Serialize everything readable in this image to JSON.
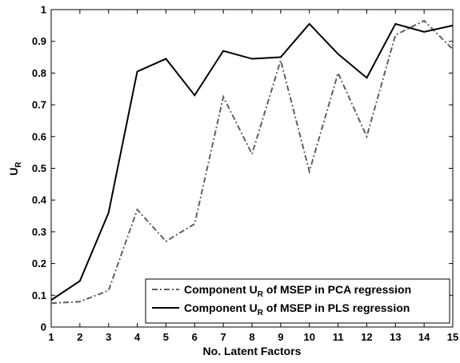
{
  "chart_data": {
    "type": "line",
    "title": "",
    "xlabel": "No. Latent Factors",
    "ylabel": "U",
    "ylabel_sub": "R",
    "x": [
      1,
      2,
      3,
      4,
      5,
      6,
      7,
      8,
      9,
      10,
      11,
      12,
      13,
      14,
      15
    ],
    "xlim": [
      1,
      15
    ],
    "ylim": [
      0,
      1
    ],
    "xticks": [
      1,
      2,
      3,
      4,
      5,
      6,
      7,
      8,
      9,
      10,
      11,
      12,
      13,
      14,
      15
    ],
    "yticks": [
      0,
      0.1,
      0.2,
      0.3,
      0.4,
      0.5,
      0.6,
      0.7,
      0.8,
      0.9,
      1
    ],
    "grid": false,
    "legend_position": "bottom-right",
    "series": [
      {
        "name": "Component U_R of MSEP in PCA regression",
        "legend_pre": "Component U",
        "legend_sub": "R",
        "legend_post": " of MSEP in PCA regression",
        "style": "dashdot",
        "color": "#606060",
        "values": [
          0.075,
          0.08,
          0.115,
          0.37,
          0.27,
          0.325,
          0.725,
          0.545,
          0.84,
          0.49,
          0.8,
          0.6,
          0.92,
          0.965,
          0.875
        ]
      },
      {
        "name": "Component U_R of MSEP in PLS regression",
        "legend_pre": "Component U",
        "legend_sub": "R",
        "legend_post": " of MSEP in PLS regression",
        "style": "solid",
        "color": "#000000",
        "values": [
          0.085,
          0.145,
          0.36,
          0.805,
          0.845,
          0.73,
          0.87,
          0.845,
          0.85,
          0.955,
          0.86,
          0.785,
          0.955,
          0.93,
          0.95
        ]
      }
    ]
  }
}
